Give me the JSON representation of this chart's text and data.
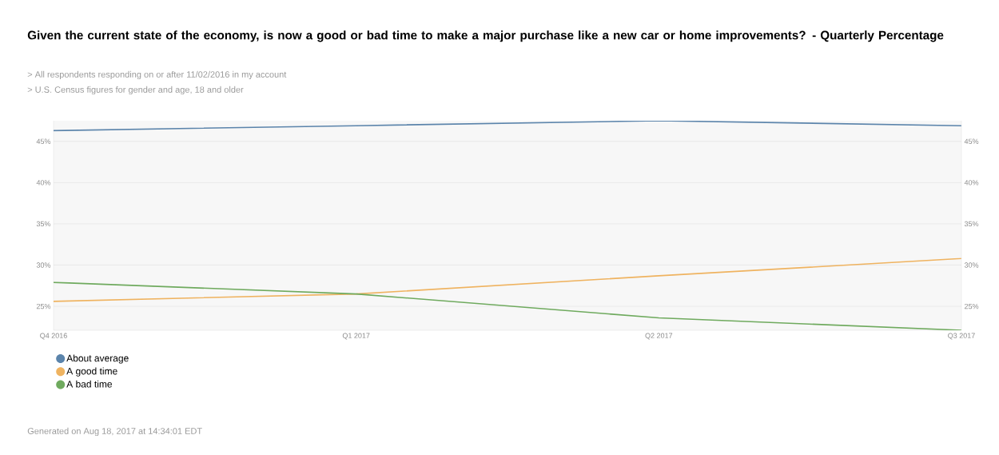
{
  "chart_data": {
    "type": "line",
    "title": "Given the current state of the economy, is now a good or bad time to make a major purchase like a new car or home improvements? - Quarterly Percentage",
    "annotations": [
      "> All respondents responding on or after 11/02/2016 in my account",
      "> U.S. Census figures for gender and age, 18 and older",
      "Generated on Aug 18, 2017 at 14:34:01 EDT"
    ],
    "categories": [
      "Q4 2016",
      "Q1 2017",
      "Q2 2017",
      "Q3 2017"
    ],
    "series": [
      {
        "name": "About average",
        "color": "#5b84ab",
        "values": [
          46.3,
          46.9,
          47.5,
          46.9
        ]
      },
      {
        "name": "A good time",
        "color": "#efb360",
        "values": [
          25.6,
          26.5,
          28.7,
          30.8
        ]
      },
      {
        "name": "A bad time",
        "color": "#6faa5e",
        "values": [
          27.9,
          26.5,
          23.6,
          22.1
        ]
      }
    ],
    "ylim": [
      22.1,
      47.5
    ],
    "yticks": [
      {
        "value": 25,
        "label": "25%"
      },
      {
        "value": 30,
        "label": "30%"
      },
      {
        "value": 35,
        "label": "35%"
      },
      {
        "value": 40,
        "label": "40%"
      },
      {
        "value": 45,
        "label": "45%"
      }
    ],
    "y2lim": [
      22.1,
      47.5
    ],
    "y2ticks": [
      {
        "value": 25,
        "label": "25%"
      },
      {
        "value": 30,
        "label": "30%"
      },
      {
        "value": 35,
        "label": "35%"
      },
      {
        "value": 40,
        "label": "40%"
      },
      {
        "value": 45,
        "label": "45%"
      }
    ],
    "grid": "y",
    "legend": "bottom left",
    "marker": "none",
    "line_style": "solid"
  }
}
